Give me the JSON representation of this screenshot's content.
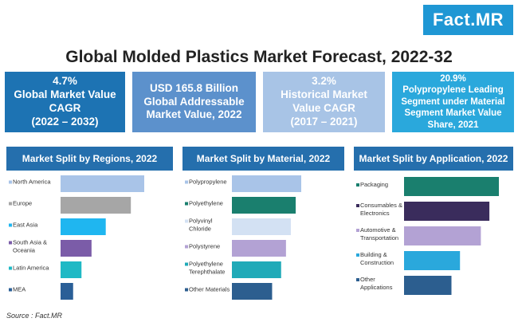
{
  "logo": "Fact.MR",
  "title": "Global Molded Plastics Market Forecast, 2022-32",
  "kpis": [
    {
      "lines": [
        "4.7%",
        "Global Market Value",
        "CAGR",
        "(2022 – 2032)"
      ]
    },
    {
      "lines": [
        "USD 165.8 Billion",
        "Global Addressable",
        "Market Value, 2022"
      ]
    },
    {
      "lines": [
        "3.2%",
        "Historical Market",
        "Value CAGR",
        "(2017 – 2021)"
      ]
    },
    {
      "lines": [
        "20.9%",
        "Polypropylene Leading",
        "Segment under Material",
        "Segment Market Value",
        "Share, 2021"
      ]
    }
  ],
  "chart_data": [
    {
      "type": "bar",
      "title": "Market Split by Regions, 2022",
      "categories": [
        "North America",
        "Europe",
        "East Asia",
        "South Asia & Oceania",
        "Latin America",
        "MEA"
      ],
      "category_lines": [
        [
          "North America"
        ],
        [
          "Europe"
        ],
        [
          "East Asia"
        ],
        [
          "South Asia &",
          "Oceania"
        ],
        [
          "Latin America"
        ],
        [
          "MEA"
        ]
      ],
      "values": [
        100,
        84,
        54,
        37,
        25,
        15
      ],
      "colors": [
        "#a9c4e8",
        "#a6a6a6",
        "#1fb6f0",
        "#7b5ca8",
        "#1fb9c5",
        "#2a5f97"
      ],
      "xlim": [
        0,
        100
      ]
    },
    {
      "type": "bar",
      "title": "Market Split by Material, 2022",
      "categories": [
        "Polypropylene",
        "Polyethylene",
        "Polyvinyl Chloride",
        "Polystyrene",
        "Polyethylene Terephthalate",
        "Other Materials"
      ],
      "category_lines": [
        [
          "Polypropylene"
        ],
        [
          "Polyethylene"
        ],
        [
          "Polyvinyl",
          "Chloride"
        ],
        [
          "Polystyrene"
        ],
        [
          "Polyethylene",
          "Terephthalate"
        ],
        [
          "Other Materials"
        ]
      ],
      "values": [
        100,
        92,
        85,
        78,
        71,
        58
      ],
      "colors": [
        "#a9c4e8",
        "#1a7f6e",
        "#d3e1f3",
        "#b3a2d4",
        "#20aab8",
        "#2c5e8f"
      ],
      "xlim": [
        0,
        100
      ]
    },
    {
      "type": "bar",
      "title": "Market Split by Application, 2022",
      "categories": [
        "Packaging",
        "Consumables & Electronics",
        "Automotive & Transportation",
        "Building & Construction",
        "Other Applications"
      ],
      "category_lines": [
        [
          "Packaging"
        ],
        [
          "Consumables &",
          "Electronics"
        ],
        [
          "Automotive &",
          "Transportation"
        ],
        [
          "Building &",
          "Construction"
        ],
        [
          "Other",
          "Applications"
        ]
      ],
      "values": [
        100,
        90,
        81,
        59,
        50
      ],
      "colors": [
        "#1a7f6e",
        "#3a2c5c",
        "#b3a2d4",
        "#2aa8dc",
        "#2c5e8f"
      ],
      "xlim": [
        0,
        100
      ]
    }
  ],
  "source": "Source : Fact.MR"
}
